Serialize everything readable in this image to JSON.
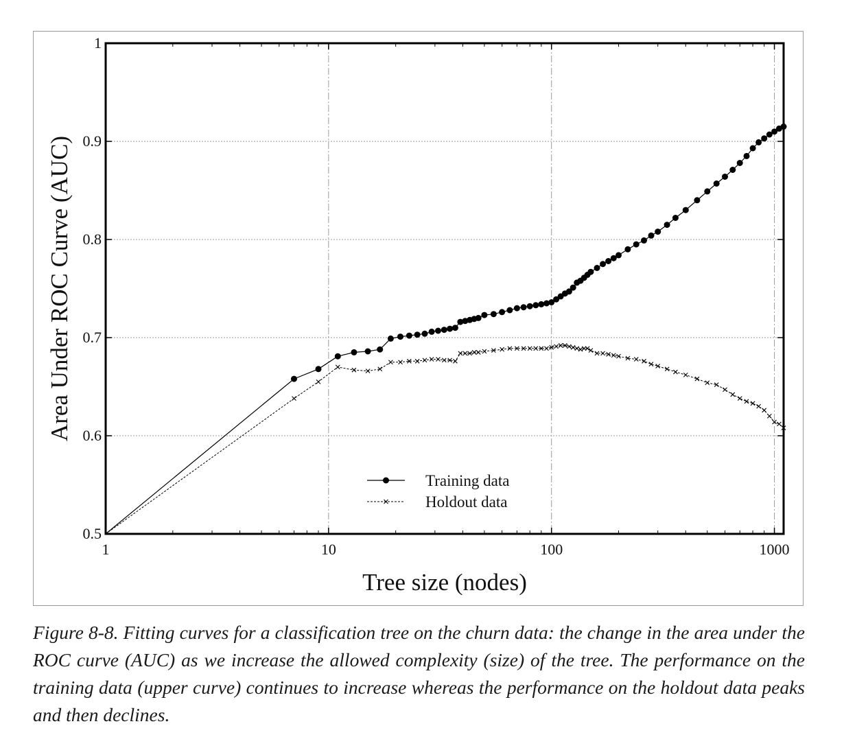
{
  "chart_data": {
    "type": "line",
    "title": "",
    "xlabel": "Tree size (nodes)",
    "ylabel": "Area Under ROC Curve (AUC)",
    "x_scale": "log",
    "xlim": [
      1,
      1100
    ],
    "ylim": [
      0.5,
      1
    ],
    "x_ticks": [
      1,
      10,
      100,
      1000
    ],
    "x_tick_labels": [
      "1",
      "10",
      "100",
      "1000"
    ],
    "y_ticks": [
      0.5,
      0.6,
      0.7,
      0.8,
      0.9,
      1
    ],
    "y_tick_labels": [
      "0.5",
      "0.6",
      "0.7",
      "0.8",
      "0.9",
      "1"
    ],
    "grid": true,
    "legend_position": "bottom-center",
    "series": [
      {
        "name": "Training data",
        "marker": "circle",
        "x": [
          1,
          7,
          9,
          11,
          13,
          15,
          17,
          19,
          21,
          23,
          25,
          27,
          29,
          31,
          33,
          35,
          37,
          39,
          41,
          43,
          45,
          47,
          50,
          55,
          60,
          65,
          70,
          75,
          80,
          85,
          90,
          95,
          100,
          105,
          110,
          115,
          120,
          125,
          130,
          135,
          140,
          145,
          150,
          160,
          170,
          180,
          190,
          200,
          220,
          240,
          260,
          280,
          300,
          330,
          360,
          400,
          450,
          500,
          550,
          600,
          650,
          700,
          750,
          800,
          850,
          900,
          950,
          1000,
          1050,
          1100
        ],
        "y": [
          0.5,
          0.658,
          0.668,
          0.681,
          0.685,
          0.686,
          0.688,
          0.699,
          0.701,
          0.702,
          0.703,
          0.704,
          0.706,
          0.707,
          0.708,
          0.709,
          0.71,
          0.716,
          0.717,
          0.718,
          0.719,
          0.72,
          0.723,
          0.724,
          0.726,
          0.728,
          0.73,
          0.731,
          0.732,
          0.733,
          0.734,
          0.735,
          0.736,
          0.739,
          0.742,
          0.745,
          0.747,
          0.751,
          0.756,
          0.758,
          0.761,
          0.764,
          0.767,
          0.771,
          0.775,
          0.778,
          0.781,
          0.784,
          0.79,
          0.795,
          0.799,
          0.804,
          0.808,
          0.815,
          0.822,
          0.83,
          0.84,
          0.849,
          0.857,
          0.864,
          0.871,
          0.878,
          0.885,
          0.893,
          0.899,
          0.903,
          0.907,
          0.91,
          0.913,
          0.915
        ]
      },
      {
        "name": "Holdout data",
        "marker": "x",
        "x": [
          1,
          7,
          9,
          11,
          13,
          15,
          17,
          19,
          21,
          23,
          25,
          27,
          29,
          31,
          33,
          35,
          37,
          39,
          41,
          43,
          45,
          47,
          50,
          55,
          60,
          65,
          70,
          75,
          80,
          85,
          90,
          95,
          100,
          105,
          110,
          115,
          120,
          125,
          130,
          135,
          140,
          145,
          150,
          160,
          170,
          180,
          190,
          200,
          220,
          240,
          260,
          280,
          300,
          330,
          360,
          400,
          450,
          500,
          550,
          600,
          650,
          700,
          750,
          800,
          850,
          900,
          950,
          1000,
          1050,
          1100
        ],
        "y": [
          0.5,
          0.638,
          0.655,
          0.67,
          0.667,
          0.666,
          0.668,
          0.675,
          0.675,
          0.676,
          0.676,
          0.677,
          0.678,
          0.678,
          0.677,
          0.677,
          0.676,
          0.684,
          0.684,
          0.684,
          0.685,
          0.685,
          0.686,
          0.687,
          0.688,
          0.689,
          0.689,
          0.689,
          0.689,
          0.689,
          0.689,
          0.689,
          0.69,
          0.691,
          0.692,
          0.692,
          0.691,
          0.69,
          0.689,
          0.688,
          0.689,
          0.689,
          0.687,
          0.684,
          0.684,
          0.683,
          0.682,
          0.681,
          0.679,
          0.678,
          0.676,
          0.673,
          0.671,
          0.668,
          0.665,
          0.662,
          0.658,
          0.654,
          0.652,
          0.647,
          0.642,
          0.638,
          0.635,
          0.633,
          0.63,
          0.626,
          0.62,
          0.614,
          0.612,
          0.608
        ]
      }
    ]
  },
  "caption": "Figure 8-8. Fitting curves for a classification tree on the churn data: the change in the area under the ROC curve (AUC) as we increase the allowed complexity (size) of the tree. The performance on the training data (upper curve) continues to increase whereas the performance on the holdout data peaks and then declines."
}
